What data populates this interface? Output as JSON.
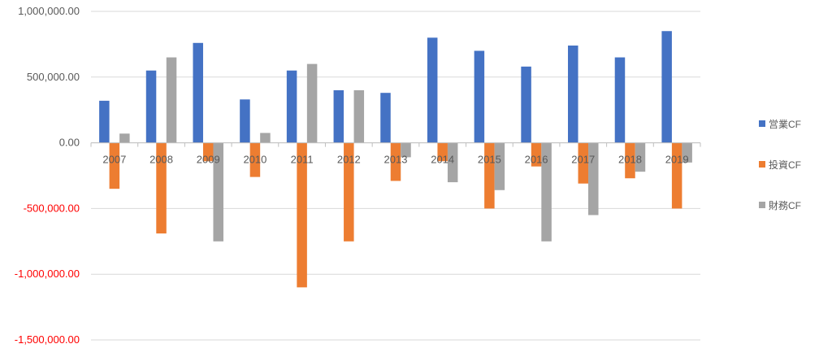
{
  "chart_data": {
    "type": "bar",
    "categories": [
      "2007",
      "2008",
      "2009",
      "2010",
      "2011",
      "2012",
      "2013",
      "2014",
      "2015",
      "2016",
      "2017",
      "2018",
      "2019"
    ],
    "series": [
      {
        "name": "営業CF",
        "color": "#4472C4",
        "values": [
          320000,
          550000,
          760000,
          330000,
          550000,
          400000,
          380000,
          800000,
          700000,
          580000,
          740000,
          650000,
          850000
        ]
      },
      {
        "name": "投資CF",
        "color": "#ED7D31",
        "values": [
          -350000,
          -690000,
          -140000,
          -260000,
          -1100000,
          -750000,
          -290000,
          -140000,
          -500000,
          -180000,
          -310000,
          -270000,
          -500000
        ]
      },
      {
        "name": "財務CF",
        "color": "#A5A5A5",
        "values": [
          70000,
          650000,
          -750000,
          75000,
          600000,
          400000,
          -110000,
          -300000,
          -360000,
          -750000,
          -550000,
          -220000,
          -150000
        ]
      }
    ],
    "yticks": [
      "1,000,000.00",
      "500,000.00",
      "0.00",
      "-500,000.00",
      "-1,000,000.00",
      "-1,500,000.00"
    ],
    "ylim": [
      -1500000,
      1000000
    ],
    "negative_tick_color": "#FF0000",
    "legend_position": "right",
    "grid": true
  }
}
